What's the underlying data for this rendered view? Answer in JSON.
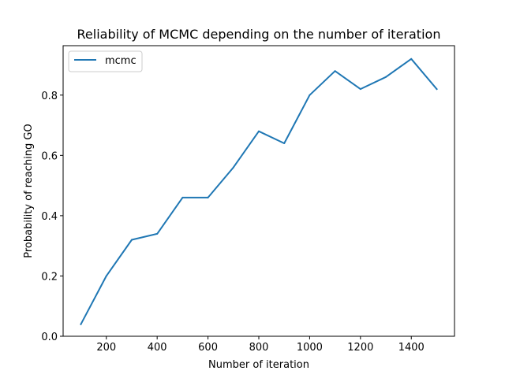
{
  "chart_data": {
    "type": "line",
    "title": "Reliability of MCMC depending on the number of iteration",
    "xlabel": "Number of iteration",
    "ylabel": "Probability of reaching GO",
    "xlim": [
      30,
      1570
    ],
    "ylim": [
      0.0,
      0.964
    ],
    "xticks": [
      200,
      400,
      600,
      800,
      1000,
      1200,
      1400
    ],
    "yticks": [
      0.0,
      0.2,
      0.4,
      0.6,
      0.8
    ],
    "xtick_labels": [
      "200",
      "400",
      "600",
      "800",
      "1000",
      "1200",
      "1400"
    ],
    "ytick_labels": [
      "0.0",
      "0.2",
      "0.4",
      "0.6",
      "0.8"
    ],
    "grid": false,
    "legend_position": "upper-left",
    "series": [
      {
        "name": "mcmc",
        "color": "#1f77b4",
        "x": [
          100,
          200,
          300,
          400,
          500,
          600,
          700,
          800,
          900,
          1000,
          1100,
          1200,
          1300,
          1400,
          1500
        ],
        "y": [
          0.04,
          0.2,
          0.32,
          0.34,
          0.46,
          0.46,
          0.56,
          0.68,
          0.64,
          0.8,
          0.88,
          0.82,
          0.86,
          0.92,
          0.82
        ]
      }
    ]
  }
}
